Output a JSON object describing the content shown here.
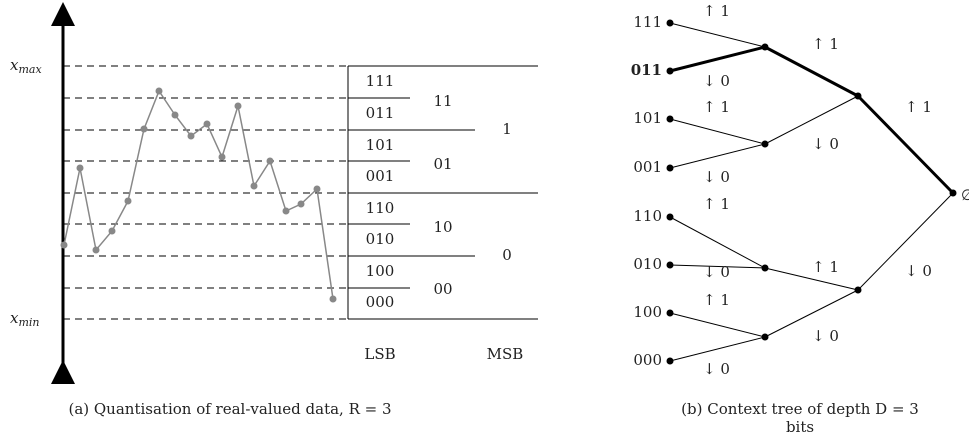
{
  "panel_a": {
    "x_max": {
      "symbol": "x",
      "subscript": "max"
    },
    "x_min": {
      "symbol": "x",
      "subscript": "min"
    },
    "lsb_labels": [
      "111",
      "011",
      "101",
      "001",
      "110",
      "010",
      "100",
      "000"
    ],
    "mid_labels": [
      "11",
      "01",
      "10",
      "00"
    ],
    "msb_labels": [
      "1",
      "0"
    ],
    "lsb_header": "LSB",
    "msb_header": "MSB",
    "caption": "(a) Quantisation of real-valued data, R = 3"
  },
  "panel_b": {
    "leaf_labels": [
      "111",
      "011",
      "101",
      "001",
      "110",
      "010",
      "100",
      "000"
    ],
    "edge_labels": [
      "↑ 1",
      "↓ 0",
      "↑ 1",
      "↓ 0",
      "↑ 1",
      "↓ 0",
      "↑ 1",
      "↓ 0",
      "↑ 1",
      "↓ 0",
      "↑ 1",
      "↓ 0",
      "↑ 1",
      "↓ 0"
    ],
    "root_label": "∅",
    "caption": [
      "(b) Context tree of depth D = 3",
      "bits"
    ]
  }
}
